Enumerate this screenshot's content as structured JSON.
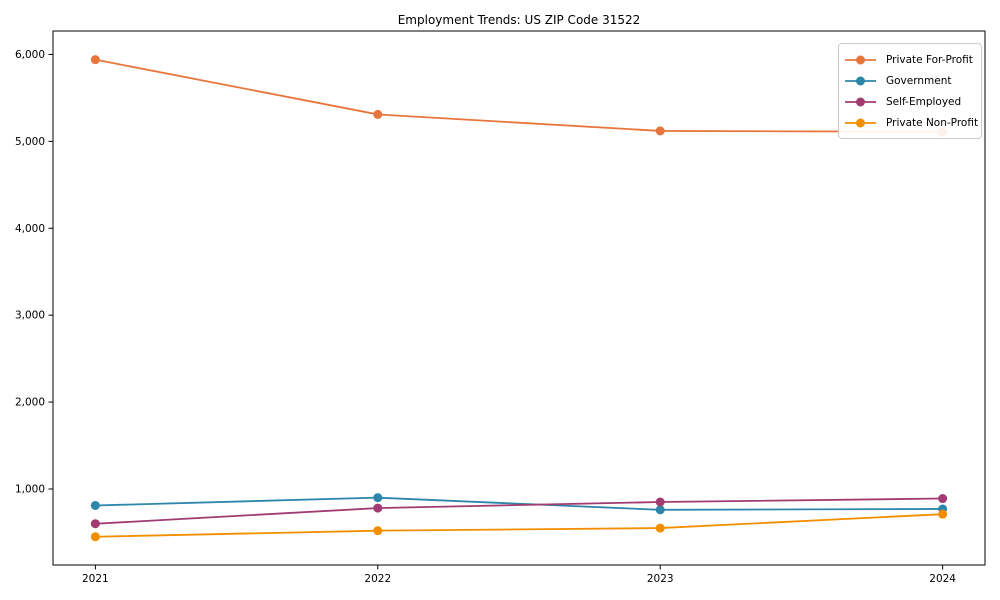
{
  "chart_data": {
    "type": "line",
    "title": "Employment Trends: US ZIP Code 31522",
    "xlabel": "",
    "ylabel": "",
    "x": [
      2021,
      2022,
      2023,
      2024
    ],
    "x_tick_labels": [
      "2021",
      "2022",
      "2023",
      "2024"
    ],
    "y_tick_values": [
      1000,
      2000,
      3000,
      4000,
      5000,
      6000
    ],
    "y_tick_labels": [
      "1,000",
      "2,000",
      "3,000",
      "4,000",
      "5,000",
      "6,000"
    ],
    "xlim": [
      2020.85,
      2024.15
    ],
    "ylim": [
      125,
      6270
    ],
    "grid": false,
    "legend_position": "upper right",
    "series": [
      {
        "name": "Private For-Profit",
        "color": "#E8763C",
        "values": [
          5940,
          5310,
          5120,
          5110
        ]
      },
      {
        "name": "Government",
        "color": "#2E86AB",
        "values": [
          810,
          900,
          760,
          770
        ]
      },
      {
        "name": "Self-Employed",
        "color": "#A23B72",
        "values": [
          600,
          780,
          850,
          890
        ]
      },
      {
        "name": "Private Non-Profit",
        "color": "#F18F01",
        "values": [
          450,
          520,
          550,
          710
        ]
      }
    ],
    "style": {
      "spine_color": "#000000",
      "background": "#ffffff",
      "marker": "circle",
      "marker_radius": 4.5,
      "line_width": 1.8
    }
  }
}
